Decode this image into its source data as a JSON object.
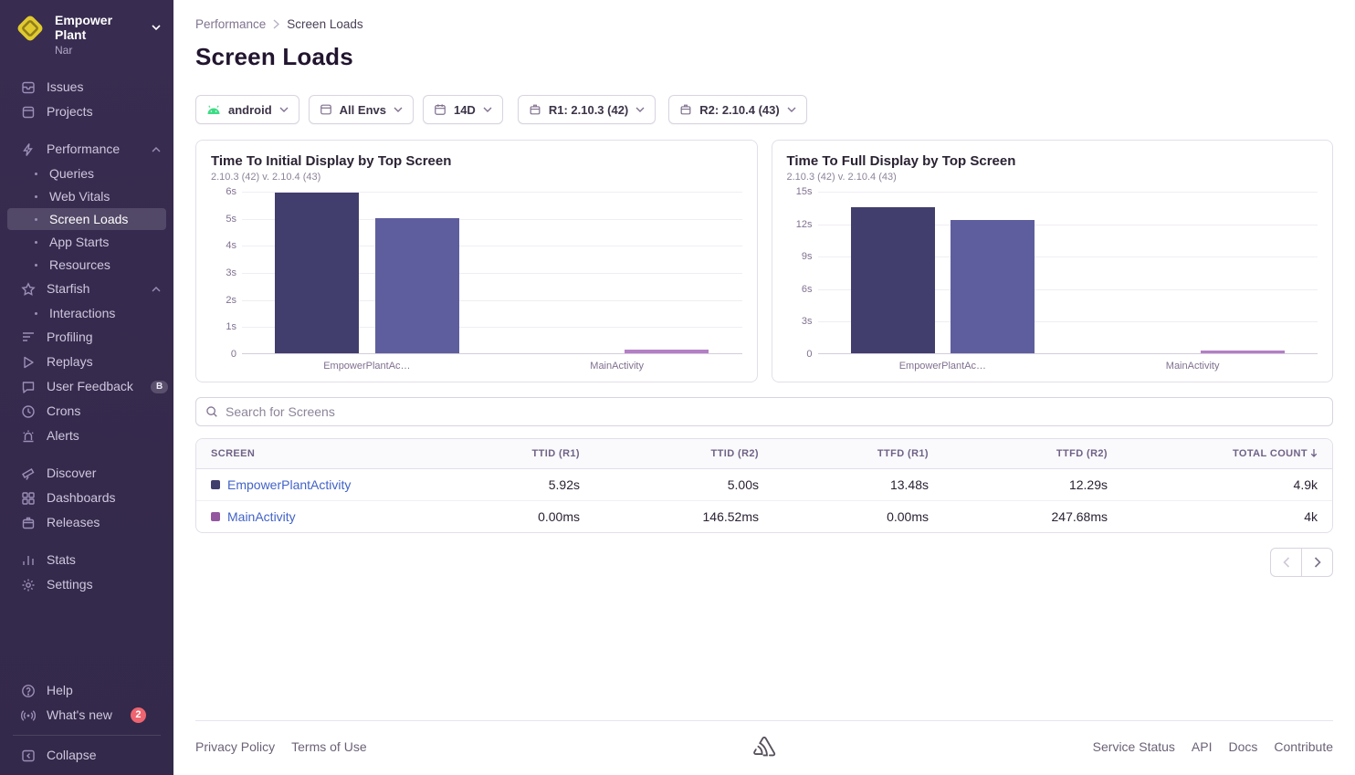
{
  "colors": {
    "sidebar_bg": "#382c50",
    "sidebar_active_bg": "rgba(255,255,255,0.14)",
    "link": "#4263c7",
    "badge_red": "#ee6470",
    "android_green": "#3ddc84"
  },
  "sidebar": {
    "org": {
      "name": "Empower Plant",
      "project": "Nar"
    },
    "nav": {
      "issues": "Issues",
      "projects": "Projects",
      "performance": "Performance",
      "queries": "Queries",
      "webVitals": "Web Vitals",
      "screenLoads": "Screen Loads",
      "appStarts": "App Starts",
      "resources": "Resources",
      "starfish": "Starfish",
      "interactions": "Interactions",
      "profiling": "Profiling",
      "replays": "Replays",
      "userFeedback": "User Feedback",
      "crons": "Crons",
      "alerts": "Alerts",
      "discover": "Discover",
      "dashboards": "Dashboards",
      "releases": "Releases",
      "stats": "Stats",
      "settings": "Settings",
      "help": "Help",
      "whatsNew": "What's new",
      "collapse": "Collapse"
    },
    "badges": {
      "userFeedback": "B",
      "whatsNew": "2"
    }
  },
  "breadcrumb": {
    "items": [
      "Performance",
      "Screen Loads"
    ]
  },
  "page": {
    "title": "Screen Loads"
  },
  "filters": [
    {
      "label": "android"
    },
    {
      "label": "All Envs"
    },
    {
      "label": "14D"
    },
    {
      "label": "R1: 2.10.3 (42)"
    },
    {
      "label": "R2: 2.10.4 (43)"
    }
  ],
  "search": {
    "placeholder": "Search for Screens"
  },
  "chart_data": [
    {
      "type": "bar",
      "title": "Time To Initial Display by Top Screen",
      "subtitle": "2.10.3 (42) v. 2.10.4 (43)",
      "categories": [
        "EmpowerPlantAc…",
        "MainActivity"
      ],
      "series": [
        {
          "name": "2.10.3 (42)",
          "values": [
            5.92,
            0
          ]
        },
        {
          "name": "2.10.4 (43)",
          "values": [
            5.0,
            0.147
          ]
        }
      ],
      "unit": "seconds",
      "ylim": [
        0,
        6
      ],
      "ytick_values": [
        0,
        1,
        2,
        3,
        4,
        5,
        6
      ],
      "yticks": [
        "0",
        "1s",
        "2s",
        "3s",
        "4s",
        "5s",
        "6s"
      ],
      "colors": [
        [
          "#413d6d",
          "#5e5e9e"
        ],
        [
          "#9357a0",
          "#b47fc6"
        ]
      ],
      "grid": true,
      "legend": "none"
    },
    {
      "type": "bar",
      "title": "Time To Full Display by Top Screen",
      "subtitle": "2.10.3 (42) v. 2.10.4 (43)",
      "categories": [
        "EmpowerPlantAc…",
        "MainActivity"
      ],
      "series": [
        {
          "name": "2.10.3 (42)",
          "values": [
            13.48,
            0
          ]
        },
        {
          "name": "2.10.4 (43)",
          "values": [
            12.29,
            0.248
          ]
        }
      ],
      "unit": "seconds",
      "ylim": [
        0,
        15
      ],
      "ytick_values": [
        0,
        3,
        6,
        9,
        12,
        15
      ],
      "yticks": [
        "0",
        "3s",
        "6s",
        "9s",
        "12s",
        "15s"
      ],
      "colors": [
        [
          "#413d6d",
          "#5e5e9e"
        ],
        [
          "#9357a0",
          "#b47fc6"
        ]
      ],
      "grid": true,
      "legend": "none"
    }
  ],
  "table": {
    "columns": [
      "Screen",
      "TTID (R1)",
      "TTID (R2)",
      "TTFD (R1)",
      "TTFD (R2)",
      "Total Count"
    ],
    "sorted_column": "Total Count",
    "rows": [
      {
        "color": "#413d6d",
        "screen": "EmpowerPlantActivity",
        "ttid_r1": "5.92s",
        "ttid_r2": "5.00s",
        "ttfd_r1": "13.48s",
        "ttfd_r2": "12.29s",
        "total": "4.9k"
      },
      {
        "color": "#9357a0",
        "screen": "MainActivity",
        "ttid_r1": "0.00ms",
        "ttid_r2": "146.52ms",
        "ttfd_r1": "0.00ms",
        "ttfd_r2": "247.68ms",
        "total": "4k"
      }
    ]
  },
  "footer": {
    "privacy": "Privacy Policy",
    "terms": "Terms of Use",
    "service_status": "Service Status",
    "api": "API",
    "docs": "Docs",
    "contribute": "Contribute"
  }
}
